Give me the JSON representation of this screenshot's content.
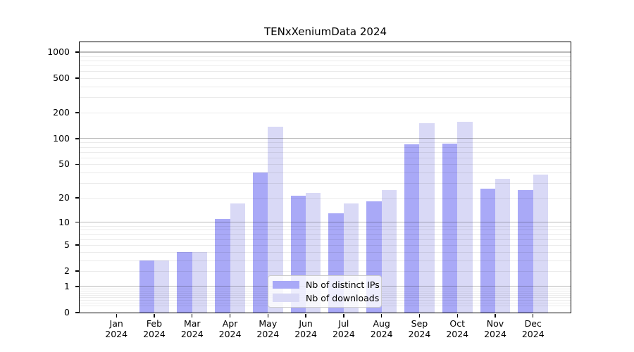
{
  "chart_data": {
    "type": "bar",
    "title": "TENxXeniumData 2024",
    "categories": [
      "Jan",
      "Feb",
      "Mar",
      "Apr",
      "May",
      "Jun",
      "Jul",
      "Aug",
      "Sep",
      "Oct",
      "Nov",
      "Dec"
    ],
    "year_label": "2024",
    "series": [
      {
        "name": "Nb of distinct IPs",
        "color": "#a9a9f7",
        "values": [
          0,
          3,
          4,
          11,
          40,
          21,
          13,
          18,
          85,
          87,
          26,
          25
        ]
      },
      {
        "name": "Nb of downloads",
        "color": "#d9d9f6",
        "values": [
          0,
          3,
          4,
          17,
          137,
          23,
          17,
          25,
          151,
          158,
          34,
          38
        ]
      }
    ],
    "xlabel": "",
    "ylabel": "",
    "scale": "log10(value+1)",
    "ylim": [
      0,
      1300
    ],
    "y_ticks": [
      0,
      1,
      2,
      5,
      10,
      20,
      50,
      100,
      200,
      500,
      1000
    ],
    "grid": "on",
    "grid_major_values": [
      1,
      10,
      100,
      1000
    ],
    "grid_minor_values": [
      0.2,
      0.3,
      0.4,
      0.5,
      0.6,
      0.7,
      0.8,
      0.9,
      2,
      3,
      4,
      5,
      6,
      7,
      8,
      9,
      20,
      30,
      40,
      50,
      60,
      70,
      80,
      90,
      200,
      300,
      400,
      500,
      600,
      700,
      800,
      900
    ],
    "legend_position": "lower-center-inside",
    "colors": {
      "grid_major": "#bababa",
      "grid_minor": "#ebebeb",
      "axis": "#000000",
      "background": "#ffffff"
    }
  }
}
